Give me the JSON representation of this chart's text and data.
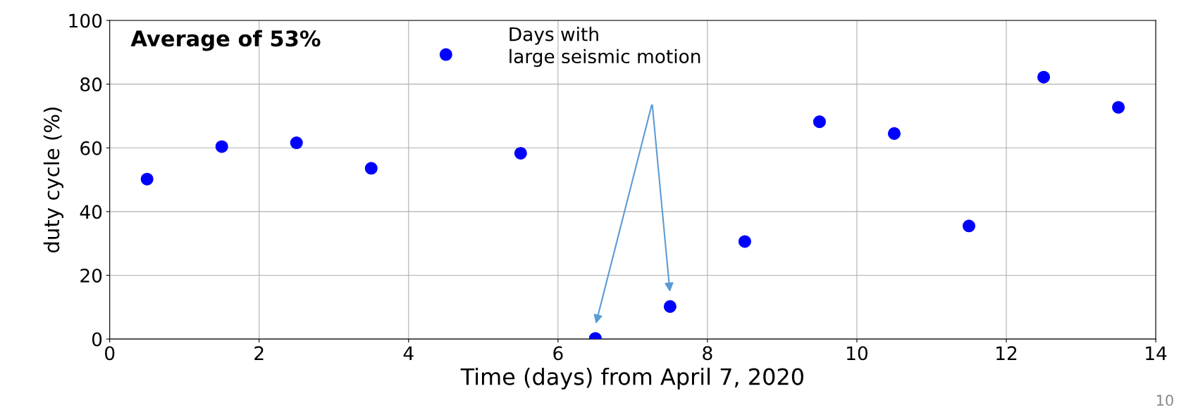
{
  "chart_data": {
    "type": "scatter",
    "xlabel": "Time (days) from April 7, 2020",
    "ylabel": "duty cycle (%)",
    "x": [
      0.5,
      1.5,
      2.5,
      3.5,
      4.5,
      5.5,
      6.5,
      7.5,
      8.5,
      9.5,
      10.5,
      11.5,
      12.5,
      13.5
    ],
    "series": [
      {
        "color": "#0000ff",
        "values": [
          50.2,
          60.4,
          61.6,
          53.6,
          89.3,
          58.3,
          0.2,
          10.2,
          30.6,
          68.2,
          64.5,
          35.5,
          82.2,
          72.7
        ]
      }
    ],
    "marker": "circle",
    "xlim": [
      0,
      14
    ],
    "xticks": [
      0,
      2,
      4,
      6,
      8,
      10,
      12,
      14
    ],
    "ylim": [
      0,
      100
    ],
    "yticks": [
      0,
      20,
      40,
      60,
      80,
      100
    ],
    "grid": true,
    "legend": false,
    "annotations": [
      "Average of 53%",
      "Days with\nlarge seismic motion",
      "10"
    ]
  }
}
